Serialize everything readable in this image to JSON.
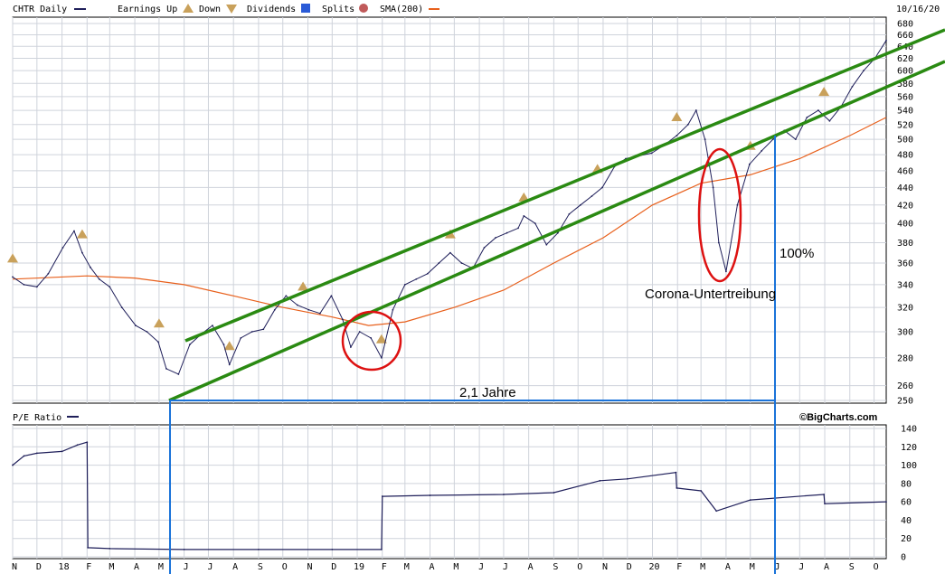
{
  "header": {
    "symbol_label": "CHTR Daily",
    "earnings_label": "Earnings Up",
    "down_label": "Down",
    "dividends_label": "Dividends",
    "splits_label": "Splits",
    "sma_label": "SMA(200)",
    "date": "10/16/20"
  },
  "colors": {
    "price": "#1f1f5a",
    "sma": "#e8601c",
    "channel": "#2a8a12",
    "circle": "#dd1111",
    "measure": "#1a73d9",
    "grid": "#cfd3db",
    "earnings": "#c9a15b"
  },
  "lower_panel": {
    "label": "P/E Ratio",
    "brand": "©BigCharts.com"
  },
  "annotations": {
    "duration": "2,1 Jahre",
    "gain": "100%",
    "covid": "Corona-Untertreibung"
  },
  "chart_data": [
    {
      "type": "line",
      "title": "CHTR Daily",
      "x_axis": {
        "start": "2017-11-01",
        "end": "2020-10-16",
        "tick_labels": [
          "N",
          "D",
          "18",
          "F",
          "M",
          "A",
          "M",
          "J",
          "J",
          "A",
          "S",
          "O",
          "N",
          "D",
          "19",
          "F",
          "M",
          "A",
          "M",
          "J",
          "J",
          "A",
          "S",
          "O",
          "N",
          "D",
          "20",
          "F",
          "M",
          "A",
          "M",
          "J",
          "J",
          "A",
          "S",
          "O"
        ],
        "tick_dates": [
          "2017-11-01",
          "2017-12-01",
          "2018-01-01",
          "2018-02-01",
          "2018-03-01",
          "2018-04-01",
          "2018-05-01",
          "2018-06-01",
          "2018-07-01",
          "2018-08-01",
          "2018-09-01",
          "2018-10-01",
          "2018-11-01",
          "2018-12-01",
          "2019-01-01",
          "2019-02-01",
          "2019-03-01",
          "2019-04-01",
          "2019-05-01",
          "2019-06-01",
          "2019-07-01",
          "2019-08-01",
          "2019-09-01",
          "2019-10-01",
          "2019-11-01",
          "2019-12-01",
          "2020-01-01",
          "2020-02-01",
          "2020-03-01",
          "2020-04-01",
          "2020-05-01",
          "2020-06-01",
          "2020-07-01",
          "2020-08-01",
          "2020-09-01",
          "2020-10-01"
        ]
      },
      "y_axis": {
        "scale": "log",
        "range": [
          250,
          680
        ],
        "tick_labels": [
          250,
          260,
          280,
          300,
          320,
          340,
          360,
          380,
          400,
          420,
          440,
          460,
          480,
          500,
          520,
          540,
          560,
          580,
          600,
          620,
          640,
          660,
          680
        ]
      },
      "series": [
        {
          "name": "CHTR Daily",
          "dates": [
            "2017-11-01",
            "2017-11-15",
            "2017-12-01",
            "2017-12-15",
            "2018-01-02",
            "2018-01-16",
            "2018-01-26",
            "2018-02-05",
            "2018-02-16",
            "2018-03-01",
            "2018-03-16",
            "2018-04-02",
            "2018-04-16",
            "2018-04-30",
            "2018-05-10",
            "2018-05-25",
            "2018-06-08",
            "2018-06-22",
            "2018-07-06",
            "2018-07-20",
            "2018-07-27",
            "2018-08-10",
            "2018-08-24",
            "2018-09-07",
            "2018-09-21",
            "2018-10-05",
            "2018-10-19",
            "2018-11-02",
            "2018-11-16",
            "2018-11-30",
            "2018-12-14",
            "2018-12-24",
            "2019-01-04",
            "2019-01-18",
            "2019-01-31",
            "2019-02-14",
            "2019-03-01",
            "2019-03-15",
            "2019-03-29",
            "2019-04-12",
            "2019-04-26",
            "2019-05-10",
            "2019-05-24",
            "2019-06-07",
            "2019-06-21",
            "2019-07-05",
            "2019-07-19",
            "2019-07-26",
            "2019-08-09",
            "2019-08-23",
            "2019-09-06",
            "2019-09-20",
            "2019-10-04",
            "2019-10-18",
            "2019-10-31",
            "2019-11-15",
            "2019-11-29",
            "2019-12-13",
            "2019-12-31",
            "2020-01-15",
            "2020-01-31",
            "2020-02-14",
            "2020-02-24",
            "2020-03-06",
            "2020-03-16",
            "2020-03-23",
            "2020-04-01",
            "2020-04-15",
            "2020-04-30",
            "2020-05-15",
            "2020-05-29",
            "2020-06-12",
            "2020-06-26",
            "2020-07-10",
            "2020-07-24",
            "2020-08-07",
            "2020-08-21",
            "2020-09-04",
            "2020-09-18",
            "2020-10-02",
            "2020-10-16"
          ],
          "values": [
            347,
            340,
            338,
            350,
            375,
            392,
            370,
            356,
            345,
            338,
            320,
            305,
            300,
            292,
            272,
            268,
            290,
            298,
            305,
            290,
            275,
            295,
            300,
            302,
            318,
            330,
            322,
            318,
            315,
            330,
            310,
            288,
            300,
            295,
            280,
            318,
            340,
            345,
            350,
            360,
            370,
            360,
            355,
            375,
            385,
            390,
            395,
            408,
            400,
            378,
            390,
            410,
            420,
            430,
            440,
            465,
            475,
            478,
            482,
            492,
            505,
            520,
            540,
            500,
            440,
            380,
            352,
            420,
            468,
            485,
            500,
            512,
            500,
            530,
            540,
            525,
            545,
            575,
            600,
            620,
            650
          ]
        },
        {
          "name": "SMA(200)",
          "dates": [
            "2017-11-01",
            "2018-02-01",
            "2018-04-01",
            "2018-06-01",
            "2018-08-01",
            "2018-10-01",
            "2018-12-01",
            "2019-01-15",
            "2019-03-01",
            "2019-05-01",
            "2019-07-01",
            "2019-09-01",
            "2019-11-01",
            "2020-01-01",
            "2020-03-01",
            "2020-05-01",
            "2020-07-01",
            "2020-09-01",
            "2020-10-16"
          ],
          "values": [
            345,
            348,
            346,
            340,
            330,
            320,
            312,
            305,
            308,
            320,
            335,
            360,
            385,
            420,
            445,
            455,
            475,
            505,
            530
          ]
        }
      ]
    },
    {
      "type": "line",
      "title": "P/E Ratio",
      "y_axis": {
        "range": [
          0,
          140
        ],
        "tick_labels": [
          0,
          20,
          40,
          60,
          80,
          100,
          120,
          140
        ]
      },
      "series": [
        {
          "name": "P/E Ratio",
          "dates": [
            "2017-11-01",
            "2017-11-15",
            "2017-12-01",
            "2018-01-01",
            "2018-01-20",
            "2018-02-01",
            "2018-02-02",
            "2018-03-01",
            "2018-06-01",
            "2018-09-01",
            "2018-12-01",
            "2019-01-31",
            "2019-02-01",
            "2019-04-01",
            "2019-07-01",
            "2019-09-01",
            "2019-10-28",
            "2019-12-01",
            "2020-01-30",
            "2020-01-31",
            "2020-03-01",
            "2020-03-20",
            "2020-05-01",
            "2020-07-31",
            "2020-08-01",
            "2020-10-16"
          ],
          "values": [
            100,
            110,
            113,
            115,
            122,
            125,
            10,
            9,
            8,
            8,
            8,
            8,
            66,
            67,
            68,
            70,
            83,
            85,
            92,
            75,
            72,
            50,
            62,
            68,
            58,
            60
          ]
        }
      ]
    }
  ]
}
